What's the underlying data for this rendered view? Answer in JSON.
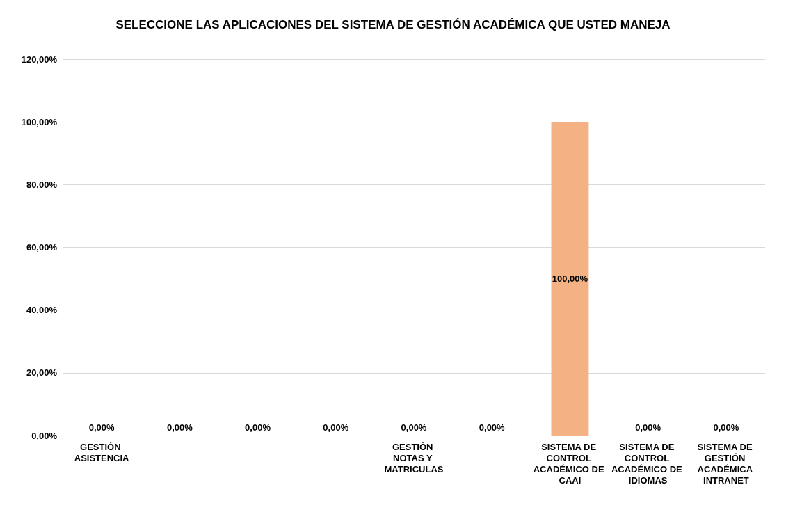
{
  "chart_data": {
    "type": "bar",
    "title": "SELECCIONE LAS APLICACIONES DEL SISTEMA DE GESTIÓN ACADÉMICA QUE USTED MANEJA",
    "categories": [
      "GESTIÓN ASISTENCIA",
      null,
      null,
      null,
      "GESTIÓN NOTAS Y MATRICULAS",
      null,
      "SISTEMA DE CONTROL ACADÉMICO DE CAAI",
      "SISTEMA DE CONTROL ACADÉMICO DE IDIOMAS",
      "SISTEMA DE GESTIÓN ACADÉMICA INTRANET"
    ],
    "values": [
      0,
      0,
      0,
      0,
      0,
      0,
      100,
      0,
      0
    ],
    "value_labels": [
      "0,00%",
      "0,00%",
      "0,00%",
      "0,00%",
      "0,00%",
      "0,00%",
      "100,00%",
      "0,00%",
      "0,00%"
    ],
    "color": "#f4b183",
    "ylim": [
      0,
      120
    ],
    "yticks": [
      {
        "value": 0,
        "label": "0,00%"
      },
      {
        "value": 20,
        "label": "20,00%"
      },
      {
        "value": 40,
        "label": "40,00%"
      },
      {
        "value": 60,
        "label": "60,00%"
      },
      {
        "value": 80,
        "label": "80,00%"
      },
      {
        "value": 100,
        "label": "100,00%"
      },
      {
        "value": 120,
        "label": "120,00%"
      }
    ],
    "grid": "y"
  }
}
